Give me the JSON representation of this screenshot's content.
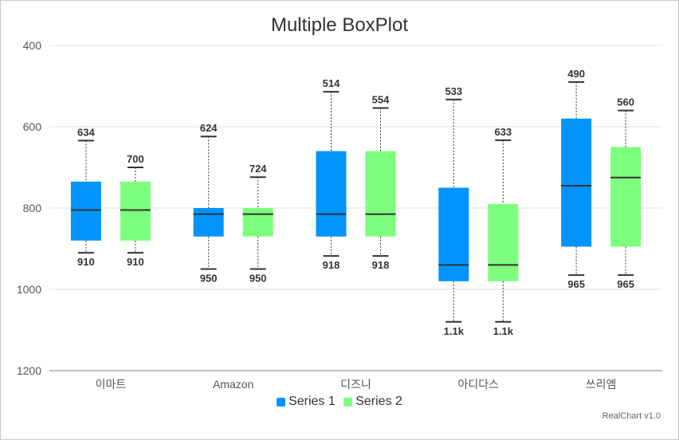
{
  "chart_data": {
    "type": "boxplot",
    "title": "Multiple BoxPlot",
    "categories": [
      "이마트",
      "Amazon",
      "디즈니",
      "아디다스",
      "쓰리엠"
    ],
    "ylim": [
      400,
      1200
    ],
    "yticks": [
      "400",
      "600",
      "800",
      "1000",
      "1200"
    ],
    "y_reversed": true,
    "grid": true,
    "legend_position": "bottom",
    "series": [
      {
        "name": "Series 1",
        "color": "#0094ff",
        "data": [
          {
            "min": 634,
            "q1": 735,
            "median": 805,
            "q3": 880,
            "max": 910,
            "min_label": "634",
            "max_label": "910"
          },
          {
            "min": 624,
            "q1": 800,
            "median": 815,
            "q3": 870,
            "max": 950,
            "min_label": "624",
            "max_label": "950"
          },
          {
            "min": 514,
            "q1": 660,
            "median": 815,
            "q3": 870,
            "max": 918,
            "min_label": "514",
            "max_label": "918"
          },
          {
            "min": 533,
            "q1": 750,
            "median": 940,
            "q3": 980,
            "max": 1080,
            "min_label": "533",
            "max_label": "1.1k"
          },
          {
            "min": 490,
            "q1": 580,
            "median": 745,
            "q3": 895,
            "max": 965,
            "min_label": "490",
            "max_label": "965"
          }
        ]
      },
      {
        "name": "Series 2",
        "color": "#7dff7d",
        "data": [
          {
            "min": 700,
            "q1": 735,
            "median": 805,
            "q3": 880,
            "max": 910,
            "min_label": "700",
            "max_label": "910"
          },
          {
            "min": 724,
            "q1": 800,
            "median": 815,
            "q3": 870,
            "max": 950,
            "min_label": "724",
            "max_label": "950"
          },
          {
            "min": 554,
            "q1": 660,
            "median": 815,
            "q3": 870,
            "max": 918,
            "min_label": "554",
            "max_label": "918"
          },
          {
            "min": 633,
            "q1": 790,
            "median": 940,
            "q3": 980,
            "max": 1080,
            "min_label": "633",
            "max_label": "1.1k"
          },
          {
            "min": 560,
            "q1": 650,
            "median": 725,
            "q3": 895,
            "max": 965,
            "min_label": "560",
            "max_label": "965"
          }
        ]
      }
    ]
  },
  "credit": "RealChart v1.0"
}
